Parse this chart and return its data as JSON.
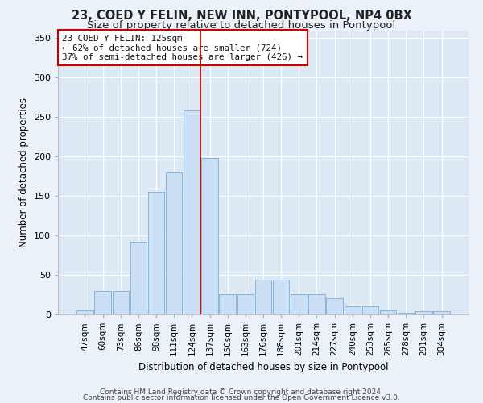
{
  "title": "23, COED Y FELIN, NEW INN, PONTYPOOL, NP4 0BX",
  "subtitle": "Size of property relative to detached houses in Pontypool",
  "xlabel": "Distribution of detached houses by size in Pontypool",
  "ylabel": "Number of detached properties",
  "categories": [
    "47sqm",
    "60sqm",
    "73sqm",
    "86sqm",
    "98sqm",
    "111sqm",
    "124sqm",
    "137sqm",
    "150sqm",
    "163sqm",
    "176sqm",
    "188sqm",
    "201sqm",
    "214sqm",
    "227sqm",
    "240sqm",
    "253sqm",
    "265sqm",
    "278sqm",
    "291sqm",
    "304sqm"
  ],
  "values": [
    5,
    30,
    30,
    92,
    155,
    180,
    258,
    198,
    26,
    26,
    44,
    44,
    26,
    26,
    20,
    10,
    10,
    5,
    2,
    4,
    4
  ],
  "bar_color": "#cce0f5",
  "bar_edge_color": "#7aafd4",
  "annotation_text_line1": "23 COED Y FELIN: 125sqm",
  "annotation_text_line2": "← 62% of detached houses are smaller (724)",
  "annotation_text_line3": "37% of semi-detached houses are larger (426) →",
  "vline_color": "#cc0000",
  "annotation_box_edge_color": "#cc0000",
  "footer_line1": "Contains HM Land Registry data © Crown copyright and database right 2024.",
  "footer_line2": "Contains public sector information licensed under the Open Government Licence v3.0.",
  "ylim": [
    0,
    360
  ],
  "yticks": [
    0,
    50,
    100,
    150,
    200,
    250,
    300,
    350
  ],
  "plot_bg_color": "#dce9f5",
  "fig_bg_color": "#eaf1f8",
  "grid_color": "#ffffff",
  "title_fontsize": 10.5,
  "subtitle_fontsize": 9.5,
  "axis_label_fontsize": 8.5,
  "tick_fontsize": 7.5,
  "footer_fontsize": 6.5
}
